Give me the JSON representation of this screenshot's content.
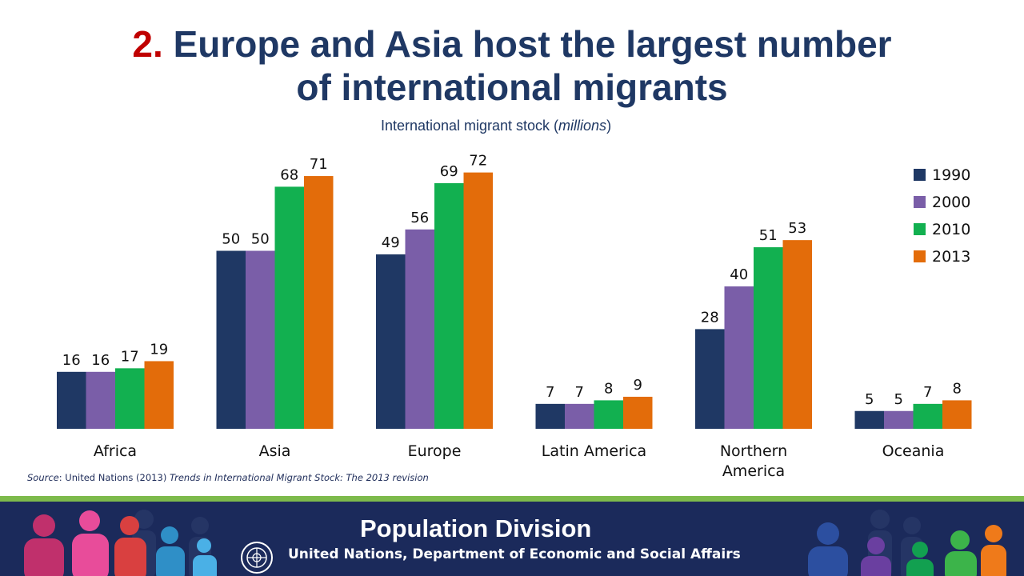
{
  "title": {
    "number": "2.",
    "line1": "Europe and Asia host the largest number",
    "line2": "of international migrants"
  },
  "subtitle": {
    "text": "International migrant stock (",
    "unit": "millions",
    "close": ")"
  },
  "chart_data": {
    "type": "bar",
    "title": "Europe and Asia host the largest number of international migrants",
    "ylabel": "International migrant stock (millions)",
    "categories": [
      "Africa",
      "Asia",
      "Europe",
      "Latin America",
      "Northern America",
      "Oceania"
    ],
    "category_labels": [
      [
        "Africa"
      ],
      [
        "Asia"
      ],
      [
        "Europe"
      ],
      [
        "Latin America"
      ],
      [
        "Northern",
        "America"
      ],
      [
        "Oceania"
      ]
    ],
    "ylim": [
      0,
      80
    ],
    "grid": false,
    "legend_position": "top-right",
    "series": [
      {
        "name": "1990",
        "color": "#1f3864",
        "values": [
          16,
          50,
          49,
          7,
          28,
          5
        ]
      },
      {
        "name": "2000",
        "color": "#7a5ea8",
        "values": [
          16,
          50,
          56,
          7,
          40,
          5
        ]
      },
      {
        "name": "2010",
        "color": "#12b050",
        "values": [
          17,
          68,
          69,
          8,
          51,
          7
        ]
      },
      {
        "name": "2013",
        "color": "#e36c0a",
        "values": [
          19,
          71,
          72,
          9,
          53,
          8
        ]
      }
    ]
  },
  "source": {
    "prefix": "Source",
    "text": ": United Nations (2013) ",
    "italic": "Trends in International Migrant Stock: The 2013 revision"
  },
  "footer": {
    "title": "Population Division",
    "subtitle": "United Nations, Department of Economic and Social Affairs"
  }
}
